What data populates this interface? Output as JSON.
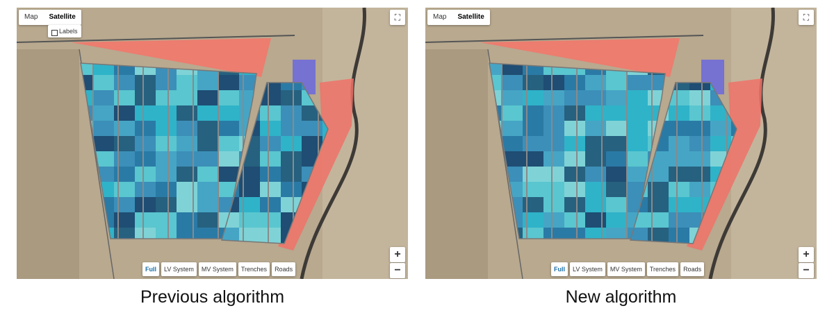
{
  "panels": [
    {
      "map_type_buttons": [
        "Map",
        "Satellite"
      ],
      "labels_toggle": "Labels",
      "layer_buttons": [
        "Full",
        "LV System",
        "MV System",
        "Trenches",
        "Roads"
      ],
      "zoom_in": "+",
      "zoom_out": "−",
      "caption": "Previous algorithm"
    },
    {
      "map_type_buttons": [
        "Map",
        "Satellite"
      ],
      "layer_buttons": [
        "Full",
        "LV System",
        "MV System",
        "Trenches",
        "Roads"
      ],
      "zoom_in": "+",
      "zoom_out": "−",
      "caption": "New algorithm"
    }
  ]
}
